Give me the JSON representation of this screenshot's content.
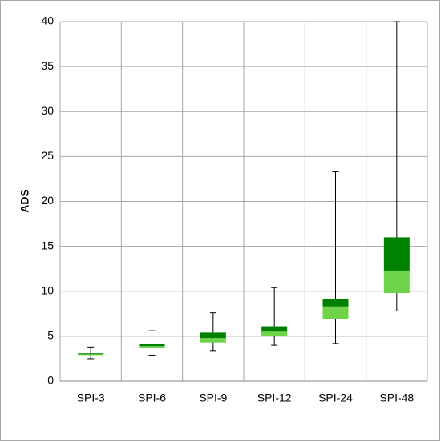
{
  "chart_data": {
    "type": "box",
    "ylabel": "ADS",
    "categories": [
      "SPI-3",
      "SPI-6",
      "SPI-9",
      "SPI-12",
      "SPI-24",
      "SPI-48"
    ],
    "min": [
      2.5,
      2.9,
      3.4,
      4.0,
      4.2,
      7.8
    ],
    "q1": [
      2.9,
      3.7,
      4.3,
      5.0,
      6.9,
      9.8
    ],
    "median": [
      3.0,
      3.9,
      4.8,
      5.5,
      8.3,
      12.3
    ],
    "q3": [
      3.1,
      4.1,
      5.4,
      6.1,
      9.1,
      16.0
    ],
    "max": [
      3.8,
      5.6,
      7.6,
      10.4,
      23.3,
      40
    ],
    "lower_color": "#6dd44a",
    "upper_color": "#008000",
    "whisker_color": "#000000",
    "ylim": [
      0,
      40
    ],
    "yticks": [
      0,
      5,
      10,
      15,
      20,
      25,
      30,
      35,
      40
    ],
    "grid": true
  }
}
